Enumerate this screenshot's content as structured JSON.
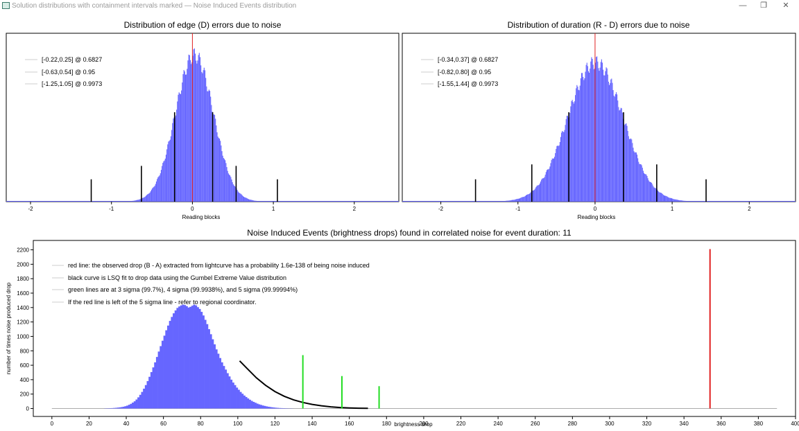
{
  "window": {
    "title": "Solution distributions with containment intervals marked — Noise Induced Events distribution",
    "min_glyph": "—",
    "max_glyph": "❐",
    "close_glyph": "✕"
  },
  "colors": {
    "histogram": "#6666ff",
    "interval_lines": "#000000",
    "observed_red": "#e02020",
    "sigma_green": "#22dd22",
    "fit_curve": "#000000",
    "baseline": "#aaaaaa"
  },
  "chart_data": [
    {
      "type": "bar",
      "title": "Distribution of edge (D) errors due to noise",
      "xlabel": "Reading blocks",
      "ylabel": "",
      "xlim": [
        -2.3,
        2.55
      ],
      "ylim": [
        0,
        1.0
      ],
      "yticks_shown": false,
      "xticks": [
        "-2",
        "-1",
        "0",
        "1",
        "2"
      ],
      "grid": false,
      "legend_position": "top-left",
      "legend": [
        "[-0.22,0.25] @ 0.6827",
        "[-0.63,0.54] @ 0.95",
        "[-1.25,1.05] @ 0.9973"
      ],
      "distribution": {
        "shape": "gaussian",
        "center": 0.02,
        "sigma": 0.235,
        "peak": 0.98
      },
      "vlines": [
        {
          "x": 0.0,
          "height": 1.0,
          "kind": "center"
        },
        {
          "x": -0.22,
          "height": 0.6
        },
        {
          "x": 0.25,
          "height": 0.6
        },
        {
          "x": -0.63,
          "height": 0.24
        },
        {
          "x": 0.54,
          "height": 0.24
        },
        {
          "x": -1.25,
          "height": 0.15
        },
        {
          "x": 1.05,
          "height": 0.15
        }
      ]
    },
    {
      "type": "bar",
      "title": "Distribution of duration (R - D) errors due to noise",
      "xlabel": "Reading blocks",
      "ylabel": "",
      "xlim": [
        -2.5,
        2.6
      ],
      "ylim": [
        0,
        1.0
      ],
      "yticks_shown": false,
      "xticks": [
        "-2",
        "-1",
        "0",
        "1",
        "2"
      ],
      "grid": false,
      "legend_position": "top-left",
      "legend": [
        "[-0.34,0.37] @ 0.6827",
        "[-0.82,0.80] @ 0.95",
        "[-1.55,1.44] @ 0.9973"
      ],
      "distribution": {
        "shape": "gaussian",
        "center": 0.0,
        "sigma": 0.36,
        "peak": 0.93
      },
      "vlines": [
        {
          "x": 0.0,
          "height": 1.0,
          "kind": "center"
        },
        {
          "x": -0.34,
          "height": 0.6
        },
        {
          "x": 0.37,
          "height": 0.6
        },
        {
          "x": -0.82,
          "height": 0.25
        },
        {
          "x": 0.8,
          "height": 0.25
        },
        {
          "x": -1.55,
          "height": 0.15
        },
        {
          "x": 1.44,
          "height": 0.15
        }
      ]
    },
    {
      "type": "bar",
      "title": "Noise Induced Events (brightness drops) found in correlated noise for event duration: 11",
      "xlabel": "brightness drop",
      "ylabel": "number of times noise produced drop",
      "xlim": [
        -10,
        400
      ],
      "ylim": [
        -110,
        2330
      ],
      "xticks": [
        "0",
        "20",
        "40",
        "60",
        "80",
        "100",
        "120",
        "140",
        "160",
        "180",
        "200",
        "220",
        "240",
        "260",
        "280",
        "300",
        "320",
        "340",
        "360",
        "380",
        "400"
      ],
      "yticks": [
        "0",
        "200",
        "400",
        "600",
        "800",
        "1000",
        "1200",
        "1400",
        "1600",
        "1800",
        "2000",
        "2200"
      ],
      "grid": false,
      "legend_position": "top-left",
      "legend": [
        "red line: the observed drop (B - A) extracted from lightcurve has a probability 1.6e-138 of being noise induced",
        "black curve is LSQ fit to drop data using the Gumbel Extreme Value distribution",
        "green lines are at 3 sigma (99.7%), 4 sigma (99.9938%), and 5 sigma (99.99994%)",
        "If the red line is left of the 5 sigma line - refer to regional coordinator."
      ],
      "histogram": {
        "bin_start": 28,
        "bin_width": 1,
        "counts": [
          2,
          3,
          4,
          5,
          6,
          8,
          10,
          13,
          16,
          20,
          25,
          32,
          40,
          52,
          65,
          82,
          100,
          125,
          155,
          190,
          230,
          275,
          325,
          380,
          440,
          505,
          570,
          640,
          715,
          790,
          865,
          940,
          1010,
          1085,
          1150,
          1215,
          1270,
          1320,
          1360,
          1395,
          1415,
          1430,
          1440,
          1435,
          1420,
          1400,
          1410,
          1425,
          1440,
          1430,
          1405,
          1380,
          1340,
          1290,
          1230,
          1170,
          1100,
          1030,
          960,
          890,
          820,
          760,
          700,
          640,
          590,
          540,
          490,
          445,
          400,
          360,
          325,
          290,
          260,
          230,
          205,
          180,
          160,
          140,
          122,
          106,
          92,
          80,
          68,
          58,
          50,
          42,
          36,
          30,
          25,
          21,
          17,
          14,
          11,
          9,
          7,
          6,
          5,
          4,
          3,
          2,
          2,
          1
        ]
      },
      "fit_curve": {
        "kind": "gumbel",
        "x": [
          101,
          105,
          110,
          115,
          120,
          125,
          130,
          135,
          140,
          145,
          150,
          155,
          160,
          165,
          170
        ],
        "y": [
          660,
          555,
          425,
          320,
          235,
          170,
          120,
          84,
          57,
          38,
          24,
          14,
          8,
          4,
          2
        ]
      },
      "baseline": {
        "x_start": 0,
        "x_end": 390
      },
      "sigma_lines": [
        {
          "label": "3 sigma",
          "x": 135,
          "y": 740
        },
        {
          "label": "4 sigma",
          "x": 156,
          "y": 450
        },
        {
          "label": "5 sigma",
          "x": 176,
          "y": 310
        }
      ],
      "observed_line": {
        "x": 354,
        "y": 2210
      }
    }
  ]
}
